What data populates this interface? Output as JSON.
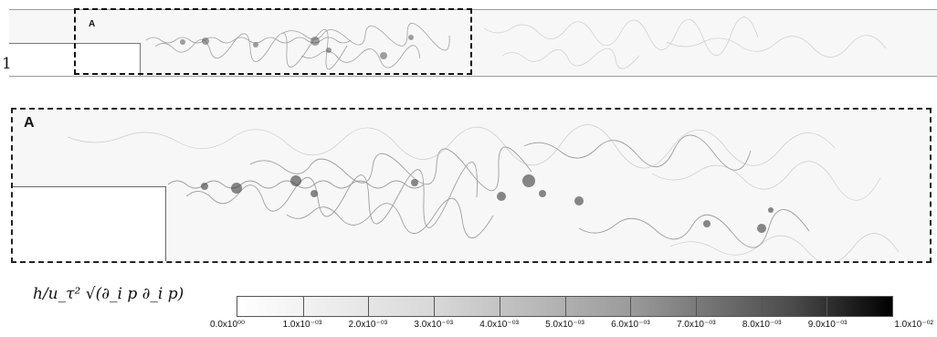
{
  "figure": {
    "overview_label": "A",
    "side_mark": "1",
    "zoom_label": "A"
  },
  "colorbar": {
    "quantity": "h/u_τ² √(∂_i p ∂_i p)",
    "colors": [
      "#ffffff",
      "#000000"
    ],
    "tick_labels": [
      "0.0x10⁰⁰",
      "1.0x10⁻⁰³",
      "2.0x10⁻⁰³",
      "3.0x10⁻⁰³",
      "4.0x10⁻⁰³",
      "5.0x10⁻⁰³",
      "6.0x10⁻⁰³",
      "7.0x10⁻⁰³",
      "8.0x10⁻⁰³",
      "9.0x10⁻⁰³",
      "1.0x10⁻⁰²"
    ]
  }
}
